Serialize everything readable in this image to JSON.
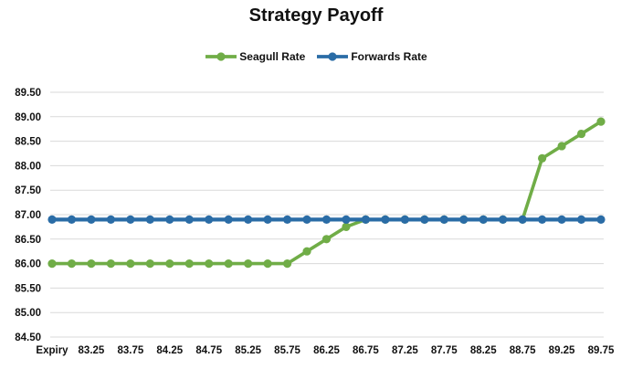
{
  "chart": {
    "title": "Strategy Payoff"
  },
  "chart_data": {
    "type": "line",
    "title": "Strategy Payoff",
    "xlabel": "",
    "ylabel": "",
    "grid": true,
    "legend_position": "top",
    "ylim": [
      84.5,
      89.5
    ],
    "y_tick_labels": [
      "89.50",
      "89.00",
      "88.50",
      "88.00",
      "87.50",
      "87.00",
      "86.50",
      "86.00",
      "85.50",
      "85.00",
      "84.50"
    ],
    "categories": [
      "Expiry",
      "",
      "83.25",
      "",
      "83.75",
      "",
      "84.25",
      "",
      "84.75",
      "",
      "85.25",
      "",
      "85.75",
      "",
      "86.25",
      "",
      "86.75",
      "",
      "87.25",
      "",
      "87.75",
      "",
      "88.25",
      "",
      "88.75",
      "",
      "89.25",
      "",
      "89.75"
    ],
    "series": [
      {
        "name": "Seagull Rate",
        "color": "#70AD47",
        "values": [
          86.0,
          86.0,
          86.0,
          86.0,
          86.0,
          86.0,
          86.0,
          86.0,
          86.0,
          86.0,
          86.0,
          86.0,
          86.0,
          86.25,
          86.5,
          86.75,
          86.9,
          86.9,
          86.9,
          86.9,
          86.9,
          86.9,
          86.9,
          86.9,
          86.9,
          88.15,
          88.4,
          88.65,
          88.9
        ]
      },
      {
        "name": "Forwards Rate",
        "color": "#2A6CA6",
        "values": [
          86.9,
          86.9,
          86.9,
          86.9,
          86.9,
          86.9,
          86.9,
          86.9,
          86.9,
          86.9,
          86.9,
          86.9,
          86.9,
          86.9,
          86.9,
          86.9,
          86.9,
          86.9,
          86.9,
          86.9,
          86.9,
          86.9,
          86.9,
          86.9,
          86.9,
          86.9,
          86.9,
          86.9,
          86.9
        ]
      }
    ],
    "gridline_color": "#D9D9D9",
    "text_color": "#111111"
  }
}
